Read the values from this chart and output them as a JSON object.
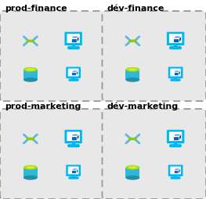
{
  "groups": [
    {
      "label": "prod-finance",
      "row": 0,
      "col": 0
    },
    {
      "label": "dév-finance",
      "row": 0,
      "col": 1
    },
    {
      "label": "prod-marketing",
      "row": 1,
      "col": 0
    },
    {
      "label": "dév-marketing",
      "row": 1,
      "col": 1
    }
  ],
  "bg_color": "#ffffff",
  "box_fill": "#e8e8e8",
  "box_edge": "#999999",
  "label_color": "#000000",
  "label_fontsize": 8.0,
  "dot_color": "#88cc00",
  "bracket_color": "#60b8d8",
  "monitor_face": "#00b8f0",
  "monitor_screen": "#ffffff",
  "cube_front": "#1060cc",
  "cube_top": "#4090e0",
  "cube_right": "#0a3a8a",
  "cylinder_top": "#aadd00",
  "cylinder_body": "#30b8d8",
  "cylinder_dark": "#2090a8"
}
